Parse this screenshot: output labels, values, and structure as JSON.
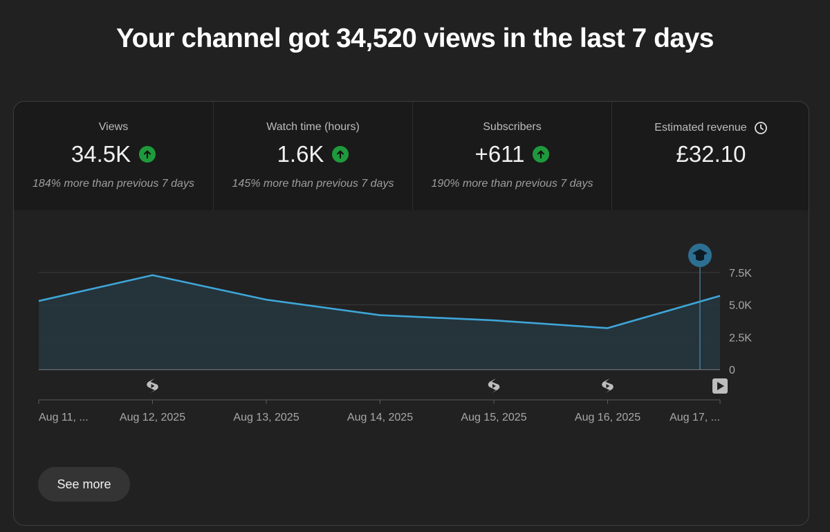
{
  "headline": "Your channel got 34,520 views in the last 7 days",
  "metrics": [
    {
      "label": "Views",
      "value": "34.5K",
      "trend": "up",
      "comparison": "184% more than previous 7 days"
    },
    {
      "label": "Watch time (hours)",
      "value": "1.6K",
      "trend": "up",
      "comparison": "145% more than previous 7 days"
    },
    {
      "label": "Subscribers",
      "value": "+611",
      "trend": "up",
      "comparison": "190% more than previous 7 days"
    },
    {
      "label": "Estimated revenue",
      "value": "£32.10",
      "trend": null,
      "comparison": "",
      "icon": "clock-icon"
    }
  ],
  "chart_data": {
    "type": "area",
    "x": [
      "Aug 11, ...",
      "Aug 12, 2025",
      "Aug 13, 2025",
      "Aug 14, 2025",
      "Aug 15, 2025",
      "Aug 16, 2025",
      "Aug 17, ..."
    ],
    "series": [
      {
        "values": [
          5300,
          7300,
          5400,
          4200,
          3800,
          3200,
          5700
        ]
      }
    ],
    "y_ticks": [
      "7.5K",
      "5.0K",
      "2.5K",
      "0"
    ],
    "y_tick_values": [
      7500,
      5000,
      2500,
      0
    ],
    "ylim": [
      0,
      7500
    ],
    "y_axis_side": "right",
    "grid": true,
    "line_color": "#3ea6d8",
    "fill_color": "#263640",
    "markers": [
      {
        "index": 1,
        "icon": "shorts-icon"
      },
      {
        "index": 4,
        "icon": "shorts-icon"
      },
      {
        "index": 5,
        "icon": "shorts-icon"
      },
      {
        "index": 6,
        "icon": "video-play-icon"
      }
    ],
    "milestone": {
      "index": 6,
      "icon": "graduation-cap-icon"
    }
  },
  "actions": {
    "see_more": "See more"
  },
  "colors": {
    "accent_up": "#1e9a3c",
    "background": "#212121",
    "tab_background": "#1a1a1a"
  }
}
